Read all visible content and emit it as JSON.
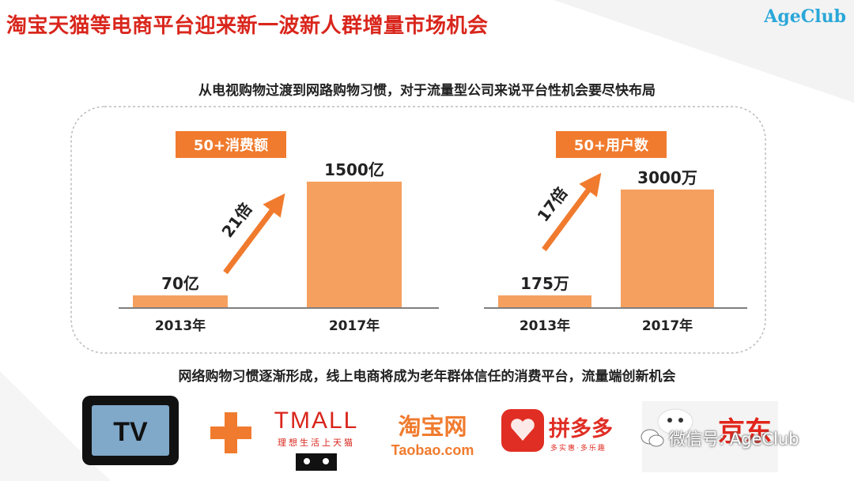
{
  "header": {
    "title": "淘宝天猫等电商平台迎来新一波新人群增量市场机会",
    "brand": "AgeClub"
  },
  "subtitle_top": "从电视购物过渡到网路购物习惯，对于流量型公司来说平台性机会要尽快布局",
  "subtitle_bottom": "网络购物习惯逐渐形成，线上电商将成为老年群体信任的消费平台，流量端创新机会",
  "chart_data": [
    {
      "type": "bar",
      "title": "50+消费额",
      "categories": [
        "2013年",
        "2017年"
      ],
      "values": [
        70,
        1500
      ],
      "data_labels": [
        "70亿",
        "1500亿"
      ],
      "growth_label": "21倍",
      "bar_color": "#f5a05f",
      "ylim": [
        0,
        1500
      ]
    },
    {
      "type": "bar",
      "title": "50+用户数",
      "categories": [
        "2013年",
        "2017年"
      ],
      "values": [
        175,
        3000
      ],
      "data_labels": [
        "175万",
        "3000万"
      ],
      "growth_label": "17倍",
      "bar_color": "#f5a05f",
      "ylim": [
        0,
        3000
      ]
    }
  ],
  "colors": {
    "accent": "#d9261c",
    "badge": "#f07b2e",
    "arrow": "#f07b2e",
    "bar": "#f5a05f",
    "brand": "#2aa7d8"
  },
  "logos": {
    "plus": "+",
    "tv": "TV",
    "tmall": {
      "name": "TMALL",
      "slogan": "理想生活上天猫"
    },
    "taobao": {
      "name": "淘宝网",
      "domain": "Taobao.com"
    },
    "pinduoduo": {
      "name": "拼多多",
      "slogan": "多实惠·多乐趣"
    },
    "jd": {
      "name": "京东"
    }
  },
  "watermark": "微信号: AgeClub"
}
